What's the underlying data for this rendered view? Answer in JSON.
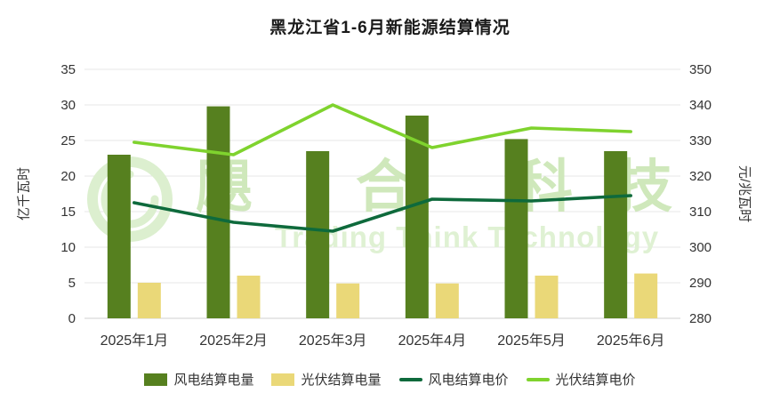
{
  "watermark": {
    "line1": "飓合科技",
    "line2": "Trading Think Technology"
  },
  "chart_data": {
    "type": "combo-bar-line",
    "title": "黑龙江省1-6月新能源结算情况",
    "categories": [
      "2025年1月",
      "2025年2月",
      "2025年3月",
      "2025年4月",
      "2025年5月",
      "2025年6月"
    ],
    "left_axis": {
      "label": "亿千瓦时",
      "min": 0,
      "max": 35,
      "step": 5,
      "ticks": [
        0,
        5,
        10,
        15,
        20,
        25,
        30,
        35
      ]
    },
    "right_axis": {
      "label": "元/兆瓦时",
      "min": 280,
      "max": 350,
      "step": 10,
      "ticks": [
        280,
        290,
        300,
        310,
        320,
        330,
        340,
        350
      ]
    },
    "grid": true,
    "legend_position": "bottom",
    "colors": {
      "wind_bar": "#56801f",
      "pv_bar": "#ead878",
      "wind_line": "#0e6a3c",
      "pv_line": "#7fd32e",
      "gridline": "#e7e7e7",
      "axis_line": "#cfcfcf",
      "text": "#333333",
      "watermark_cn": "#cfe8bb",
      "watermark_en": "#dff1d3",
      "watermark_logo": "#dcefcf"
    },
    "series": [
      {
        "name": "风电结算电量",
        "type": "bar",
        "axis": "left",
        "color": "#56801f",
        "values": [
          23.0,
          29.8,
          23.5,
          28.5,
          25.2,
          23.5
        ]
      },
      {
        "name": "光伏结算电量",
        "type": "bar",
        "axis": "left",
        "color": "#ead878",
        "values": [
          5.0,
          6.0,
          4.9,
          4.9,
          6.0,
          6.3
        ]
      },
      {
        "name": "风电结算电价",
        "type": "line",
        "axis": "right",
        "color": "#0e6a3c",
        "values": [
          312.5,
          307.0,
          304.5,
          313.5,
          313.0,
          314.5
        ]
      },
      {
        "name": "光伏结算电价",
        "type": "line",
        "axis": "right",
        "color": "#7fd32e",
        "values": [
          329.5,
          326.0,
          340.0,
          328.0,
          333.5,
          332.5
        ]
      }
    ]
  }
}
